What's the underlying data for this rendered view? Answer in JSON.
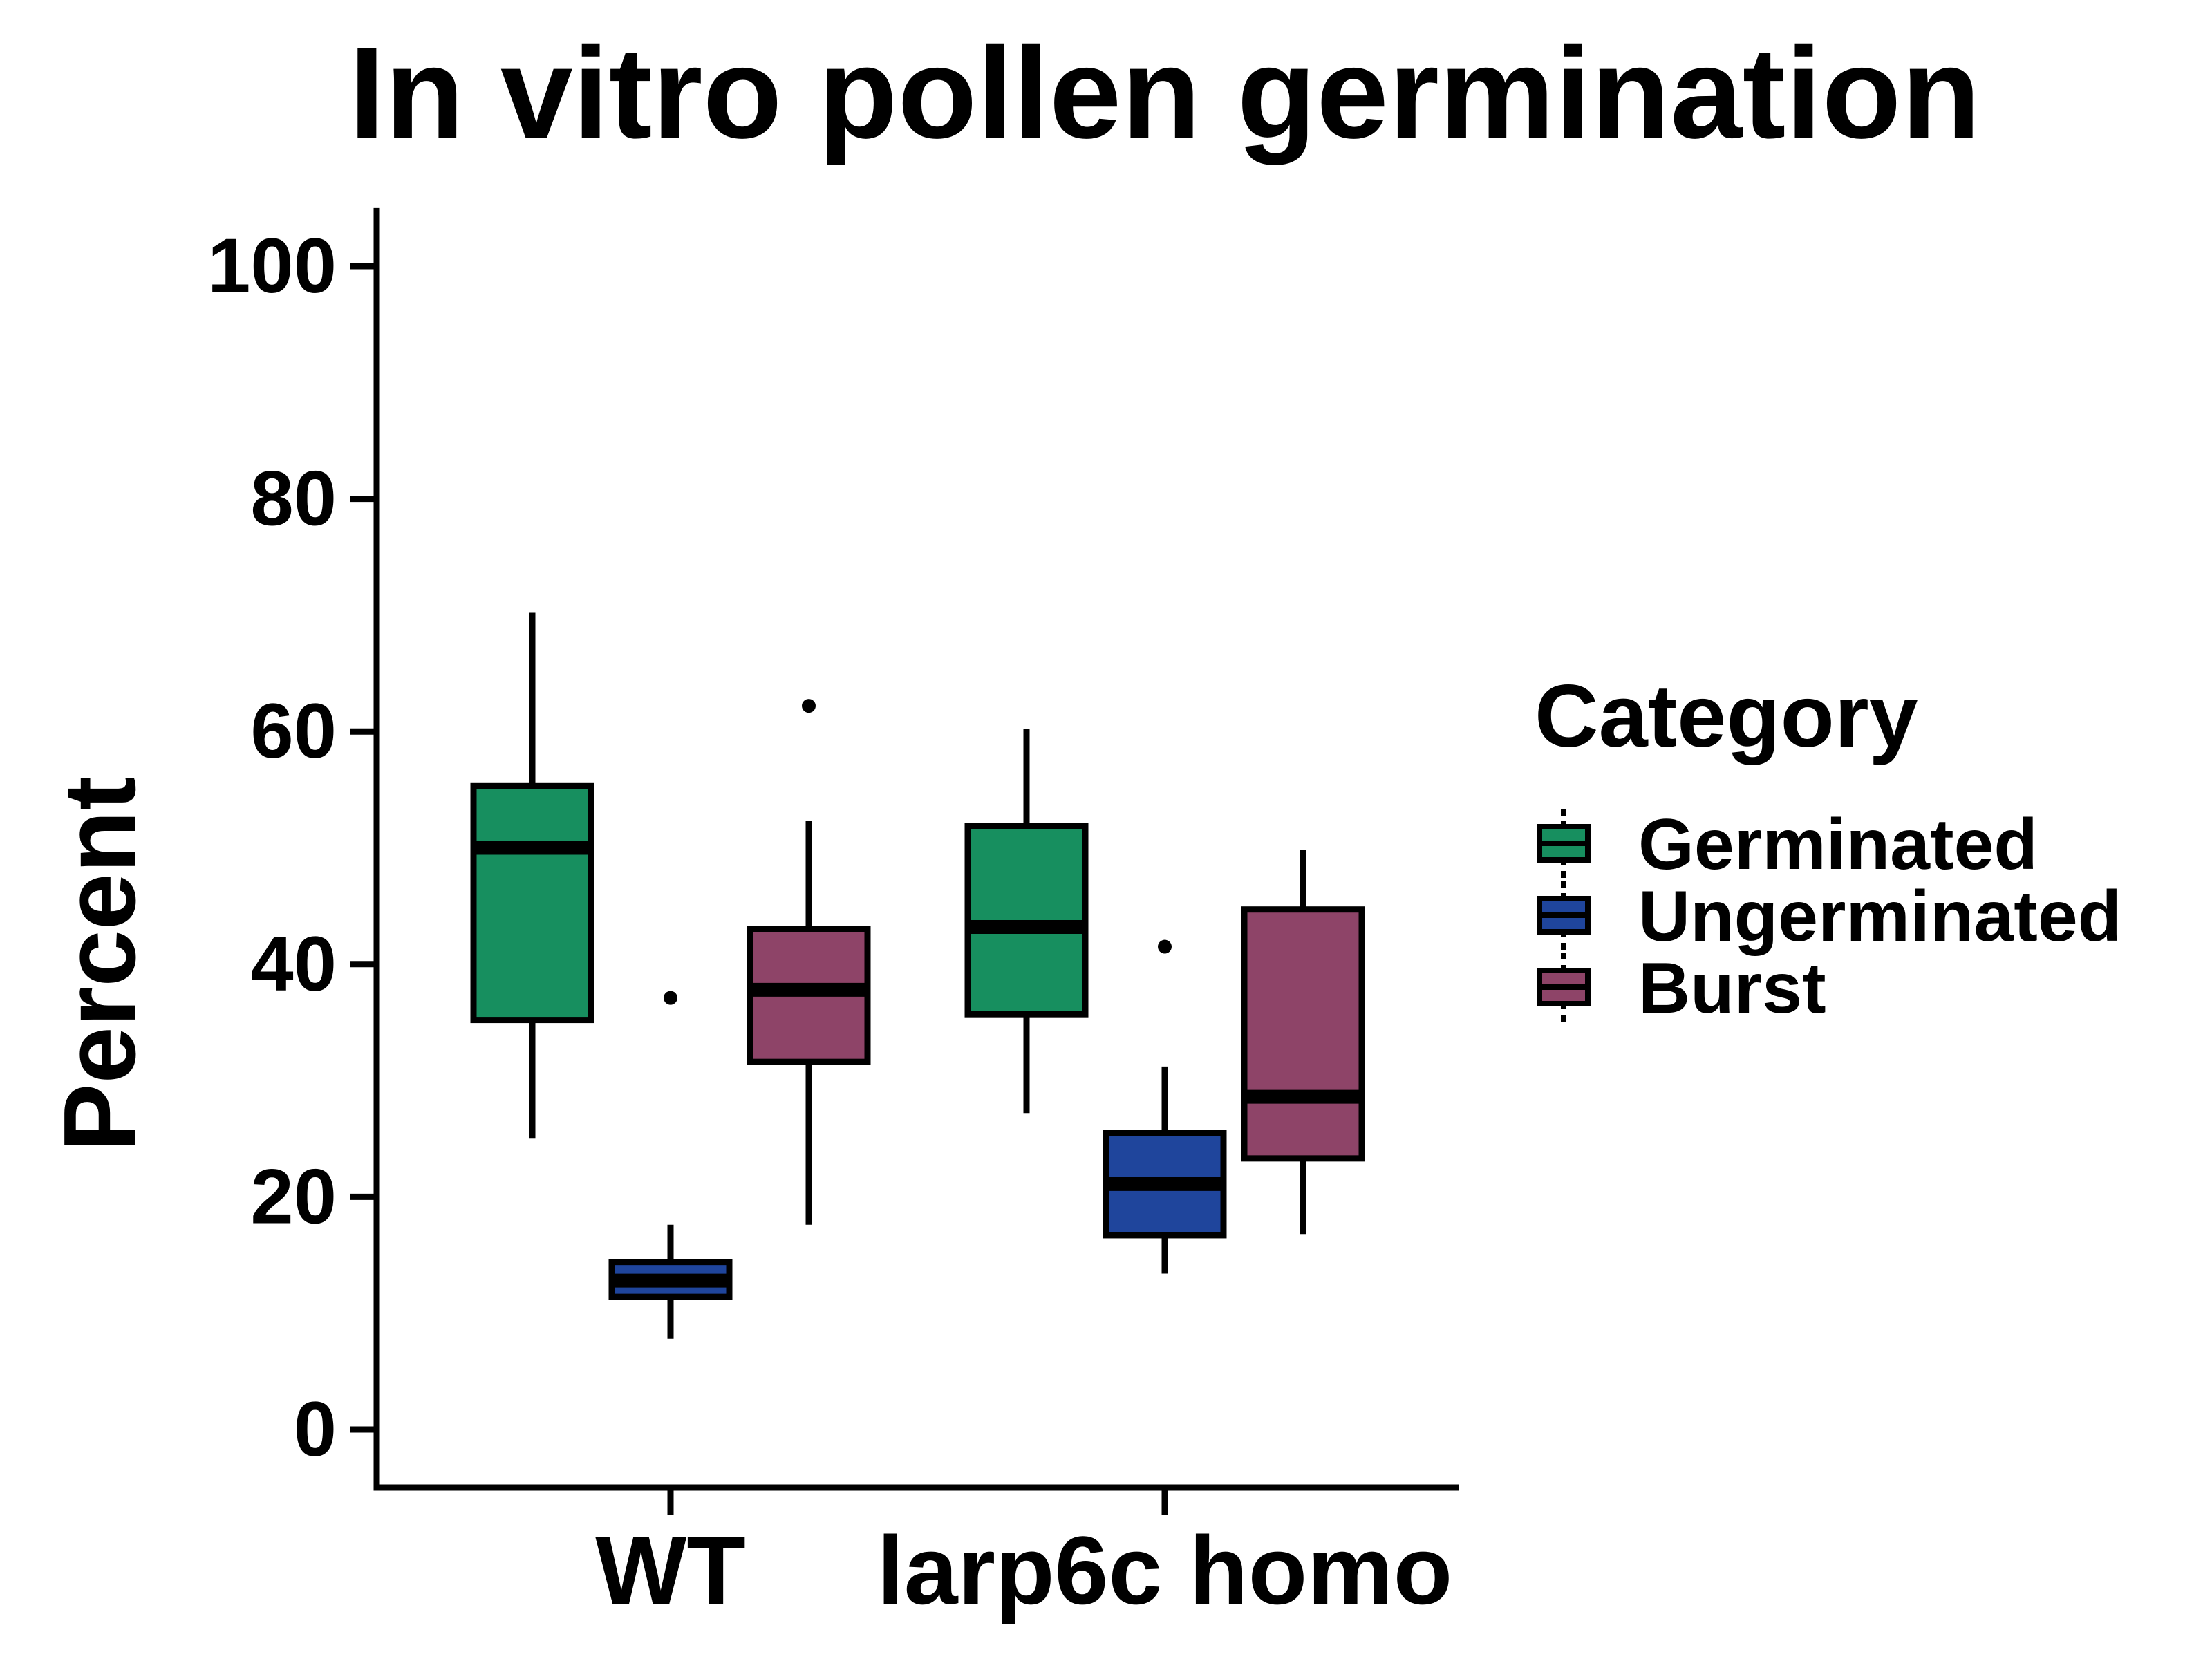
{
  "chart_data": {
    "type": "boxplot",
    "title": "In vitro pollen germination",
    "xlabel": "",
    "ylabel": "Percent",
    "ylim": [
      -5,
      105
    ],
    "yticks": [
      0,
      20,
      40,
      60,
      80,
      100
    ],
    "categories": [
      "WT",
      "larp6c homo"
    ],
    "legend": {
      "title": "Category",
      "position": "right"
    },
    "series": [
      {
        "name": "Germinated",
        "color": "#178F5F",
        "boxes": [
          {
            "min": 25,
            "q1": 35.2,
            "median": 50,
            "q3": 55.3,
            "max": 70.2,
            "outliers": []
          },
          {
            "min": 27.2,
            "q1": 35.7,
            "median": 43.2,
            "q3": 51.9,
            "max": 60.2,
            "outliers": []
          }
        ]
      },
      {
        "name": "Ungerminated",
        "color": "#1F459C",
        "boxes": [
          {
            "min": 7.8,
            "q1": 11.4,
            "median": 12.8,
            "q3": 14.4,
            "max": 17.6,
            "outliers": [
              37.1
            ]
          },
          {
            "min": 13.4,
            "q1": 16.7,
            "median": 21.1,
            "q3": 25.5,
            "max": 31.2,
            "outliers": [
              41.5
            ]
          }
        ]
      },
      {
        "name": "Burst",
        "color": "#8E4468",
        "boxes": [
          {
            "min": 17.6,
            "q1": 31.6,
            "median": 37.8,
            "q3": 43,
            "max": 52.3,
            "outliers": [
              62.2
            ]
          },
          {
            "min": 16.8,
            "q1": 23.3,
            "median": 28.6,
            "q3": 44.7,
            "max": 49.8,
            "outliers": []
          }
        ]
      }
    ]
  }
}
